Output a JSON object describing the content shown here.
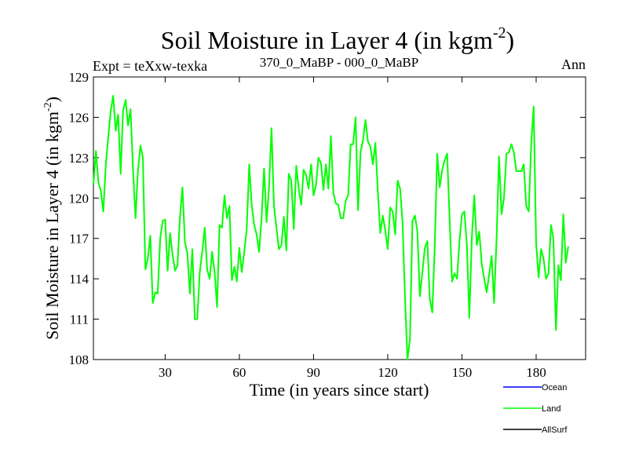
{
  "chart_data": {
    "type": "line",
    "title": "Soil Moisture in Layer 4 (in kgm",
    "title_sup": "-2",
    "title_close": ")",
    "subtitle_left": "Expt = teXxw-texka",
    "subtitle_center": "370_0_MaBP - 000_0_MaBP",
    "subtitle_right": "Ann",
    "xlabel": "Time (in years since start)",
    "ylabel": "Soil Moisture in Layer 4 (in kgm",
    "ylabel_sup": "-2",
    "ylabel_close": ")",
    "xlim": [
      1,
      200
    ],
    "ylim": [
      108,
      129
    ],
    "xticks": [
      30,
      60,
      90,
      120,
      150,
      180
    ],
    "xtick_labels": [
      "30",
      "60",
      "90",
      "120",
      "150",
      "180"
    ],
    "yticks": [
      108,
      111,
      114,
      117,
      120,
      123,
      126,
      129
    ],
    "ytick_labels": [
      "108",
      "111",
      "114",
      "117",
      "120",
      "123",
      "126",
      "129"
    ],
    "legend_placement": "bottom-right, outside plot",
    "series": [
      {
        "name": "Ocean",
        "color": "#0000ff",
        "values": []
      },
      {
        "name": "Land",
        "color": "#00ff00",
        "x_start": 1,
        "x_step": 1,
        "values": [
          121.0,
          123.5,
          121.2,
          120.5,
          119.0,
          122.5,
          124.5,
          126.5,
          127.6,
          125.0,
          126.2,
          121.8,
          126.5,
          127.3,
          125.4,
          126.6,
          122.2,
          118.5,
          122.0,
          123.9,
          123.0,
          114.7,
          115.5,
          117.2,
          112.2,
          113.0,
          112.9,
          117.0,
          118.3,
          118.4,
          114.6,
          117.4,
          115.8,
          114.6,
          115.0,
          118.6,
          120.8,
          116.7,
          115.9,
          112.9,
          116.2,
          111.0,
          111.0,
          114.5,
          116.0,
          117.8,
          114.7,
          114.0,
          116.0,
          114.5,
          111.9,
          118.0,
          117.8,
          120.2,
          118.5,
          119.4,
          113.9,
          114.9,
          113.8,
          116.3,
          114.5,
          116.0,
          117.7,
          122.5,
          119.5,
          118.0,
          117.3,
          116.0,
          118.6,
          122.2,
          118.2,
          120.8,
          125.2,
          119.4,
          117.8,
          116.2,
          116.5,
          118.6,
          116.1,
          121.8,
          121.3,
          117.7,
          122.4,
          120.7,
          119.5,
          122.1,
          121.7,
          120.7,
          122.5,
          120.2,
          121.0,
          123.0,
          122.6,
          120.6,
          122.5,
          120.7,
          124.6,
          120.4,
          119.6,
          119.5,
          118.5,
          118.5,
          119.8,
          120.2,
          124.0,
          124.0,
          126.0,
          119.1,
          123.4,
          124.3,
          125.8,
          124.2,
          123.8,
          122.5,
          124.1,
          120.5,
          117.4,
          118.7,
          117.6,
          116.2,
          119.3,
          119.0,
          117.3,
          121.3,
          120.7,
          118.2,
          112.5,
          108.0,
          109.6,
          118.3,
          118.7,
          117.5,
          112.7,
          114.5,
          116.3,
          116.8,
          112.5,
          111.5,
          116.4,
          123.3,
          120.8,
          122.1,
          122.8,
          123.3,
          118.5,
          113.8,
          114.4,
          114.0,
          116.8,
          118.8,
          119.0,
          116.5,
          111.1,
          117.1,
          120.2,
          116.5,
          117.5,
          115.1,
          114.0,
          113.0,
          114.3,
          115.7,
          112.2,
          117.0,
          123.1,
          118.8,
          120.0,
          123.3,
          123.4,
          124.0,
          123.4,
          122.0,
          122.0,
          122.0,
          122.5,
          119.4,
          119.0,
          124.0,
          126.8,
          116.6,
          114.1,
          116.2,
          115.5,
          114.0,
          114.4,
          118.0,
          117.0,
          110.2,
          115.0,
          113.9,
          118.8,
          115.2,
          116.4
        ]
      },
      {
        "name": "AllSurf",
        "color": "#000000",
        "values": []
      }
    ]
  }
}
